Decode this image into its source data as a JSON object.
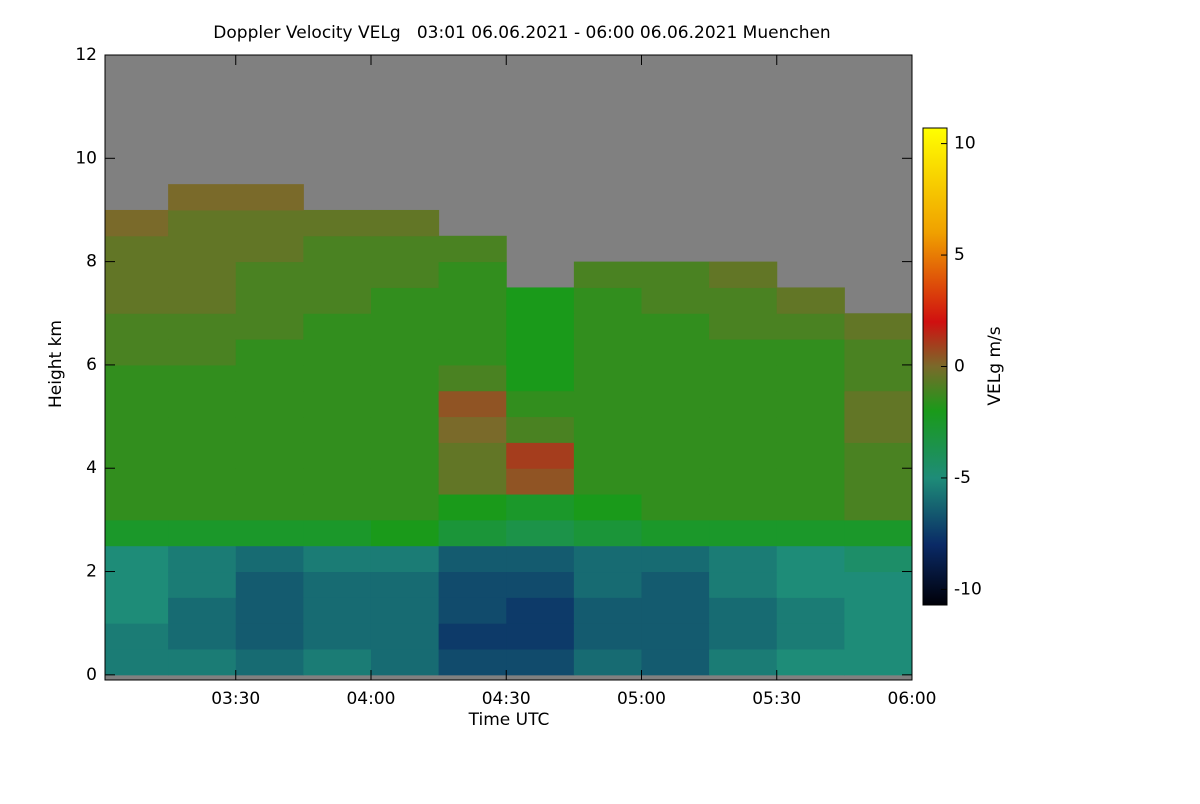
{
  "chart_data": {
    "type": "heatmap",
    "title": "Doppler Velocity VELg   03:01 06.06.2021 - 06:00 06.06.2021 Muenchen",
    "x_label": "Time UTC",
    "y_label": "Height km",
    "colorbar_label": "VELg m/s",
    "xlim": [
      "03:01",
      "06:00"
    ],
    "xticks": [
      "03:30",
      "04:00",
      "04:30",
      "05:00",
      "05:30",
      "06:00"
    ],
    "ylim": [
      -0.1,
      12
    ],
    "yticks": [
      0,
      2,
      4,
      6,
      8,
      10,
      12
    ],
    "zlim": [
      -10.7,
      10.7
    ],
    "zticks": [
      -10,
      -5,
      0,
      5,
      10
    ],
    "missing_color": "#808080",
    "colorscale": [
      [
        -10.7,
        "#000008"
      ],
      [
        -8,
        "#0a2a66"
      ],
      [
        -5,
        "#1e8c78"
      ],
      [
        -2,
        "#1a9a1a"
      ],
      [
        0,
        "#7a6a2a"
      ],
      [
        2,
        "#d01010"
      ],
      [
        6,
        "#f0a000"
      ],
      [
        10.7,
        "#ffff00"
      ]
    ],
    "x_bins": [
      "03:01",
      "03:15",
      "03:30",
      "03:45",
      "04:00",
      "04:15",
      "04:30",
      "04:45",
      "05:00",
      "05:15",
      "05:30",
      "05:45",
      "06:00"
    ],
    "y_bins": [
      0,
      0.5,
      1,
      1.5,
      2,
      2.5,
      3,
      3.5,
      4,
      4.5,
      5,
      5.5,
      6,
      6.5,
      7,
      7.5,
      8,
      8.5,
      9,
      9.5,
      10,
      10.5,
      11,
      11.5,
      12
    ],
    "z": [
      [
        -5.5,
        -5.5,
        -6,
        -5.5,
        -6,
        -7,
        -7,
        -6,
        -6.5,
        -5.5,
        -5,
        -5
      ],
      [
        -5.5,
        -6,
        -6.5,
        -6,
        -6,
        -7.5,
        -7.5,
        -6.5,
        -6.5,
        -6,
        -5.5,
        -5
      ],
      [
        -5,
        -6,
        -6.5,
        -6,
        -6,
        -7,
        -7.5,
        -6.5,
        -6.5,
        -6,
        -5.5,
        -5
      ],
      [
        -5,
        -5.5,
        -6.5,
        -6,
        -6,
        -7,
        -7,
        -6,
        -6.5,
        -5.5,
        -5,
        -5
      ],
      [
        -5,
        -5.5,
        -6,
        -5.5,
        -5.5,
        -6.5,
        -6.5,
        -6,
        -6,
        -5.5,
        -5,
        -4.5
      ],
      [
        -2.5,
        -2.5,
        -2.5,
        -2.5,
        -2,
        -3,
        -3.5,
        -3,
        -2.5,
        -2.5,
        -2.5,
        -2.5
      ],
      [
        -1.5,
        -1.5,
        -1.5,
        -1.5,
        -1.5,
        -2,
        -2.5,
        -2,
        -1.5,
        -1.5,
        -1.5,
        -1
      ],
      [
        -1.5,
        -1.5,
        -1.5,
        -1.5,
        -1.5,
        -0.5,
        0.5,
        -1.5,
        -1.5,
        -1.5,
        -1.5,
        -1
      ],
      [
        -1.5,
        -1.5,
        -1.5,
        -1.5,
        -1.5,
        -0.5,
        1,
        -1.5,
        -1.5,
        -1.5,
        -1.5,
        -1
      ],
      [
        -1.5,
        -1.5,
        -1.5,
        -1.5,
        -1.5,
        0,
        -1,
        -1.5,
        -1.5,
        -1.5,
        -1.5,
        -0.5
      ],
      [
        -1.5,
        -1.5,
        -1.5,
        -1.5,
        -1.5,
        0.5,
        -1.5,
        -1.5,
        -1.5,
        -1.5,
        -1.5,
        -0.5
      ],
      [
        -1.5,
        -1.5,
        -1.5,
        -1.5,
        -1.5,
        -1,
        -2,
        -1.5,
        -1.5,
        -1.5,
        -1.5,
        -1
      ],
      [
        -1,
        -1,
        -1.5,
        -1.5,
        -1.5,
        -1.5,
        -2,
        -1.5,
        -1.5,
        -1.5,
        -1.5,
        -1
      ],
      [
        -1,
        -1,
        -1,
        -1.5,
        -1.5,
        -1.5,
        -2,
        -1.5,
        -1.5,
        -1,
        -1,
        -0.5
      ],
      [
        -0.5,
        -0.5,
        -1,
        -1,
        -1.5,
        -1.5,
        -2,
        -1.5,
        -1,
        -1,
        -0.5,
        null
      ],
      [
        -0.5,
        -0.5,
        -1,
        -1,
        -1,
        -1.5,
        null,
        -1,
        -1,
        -0.5,
        null,
        null
      ],
      [
        -0.5,
        -0.5,
        -0.5,
        -1,
        -1,
        -1,
        null,
        null,
        null,
        null,
        null,
        null
      ],
      [
        0,
        -0.5,
        -0.5,
        -0.5,
        -0.5,
        null,
        null,
        null,
        null,
        null,
        null,
        null
      ],
      [
        null,
        0,
        0,
        null,
        null,
        null,
        null,
        null,
        null,
        null,
        null,
        null
      ],
      [
        null,
        null,
        null,
        null,
        null,
        null,
        null,
        null,
        null,
        null,
        null,
        null
      ],
      [
        null,
        null,
        null,
        null,
        null,
        null,
        null,
        null,
        null,
        null,
        null,
        null
      ],
      [
        null,
        null,
        null,
        null,
        null,
        null,
        null,
        null,
        null,
        null,
        null,
        null
      ],
      [
        null,
        null,
        null,
        null,
        null,
        null,
        null,
        null,
        null,
        null,
        null,
        null
      ],
      [
        null,
        null,
        null,
        null,
        null,
        null,
        null,
        null,
        null,
        null,
        null,
        null
      ]
    ]
  }
}
